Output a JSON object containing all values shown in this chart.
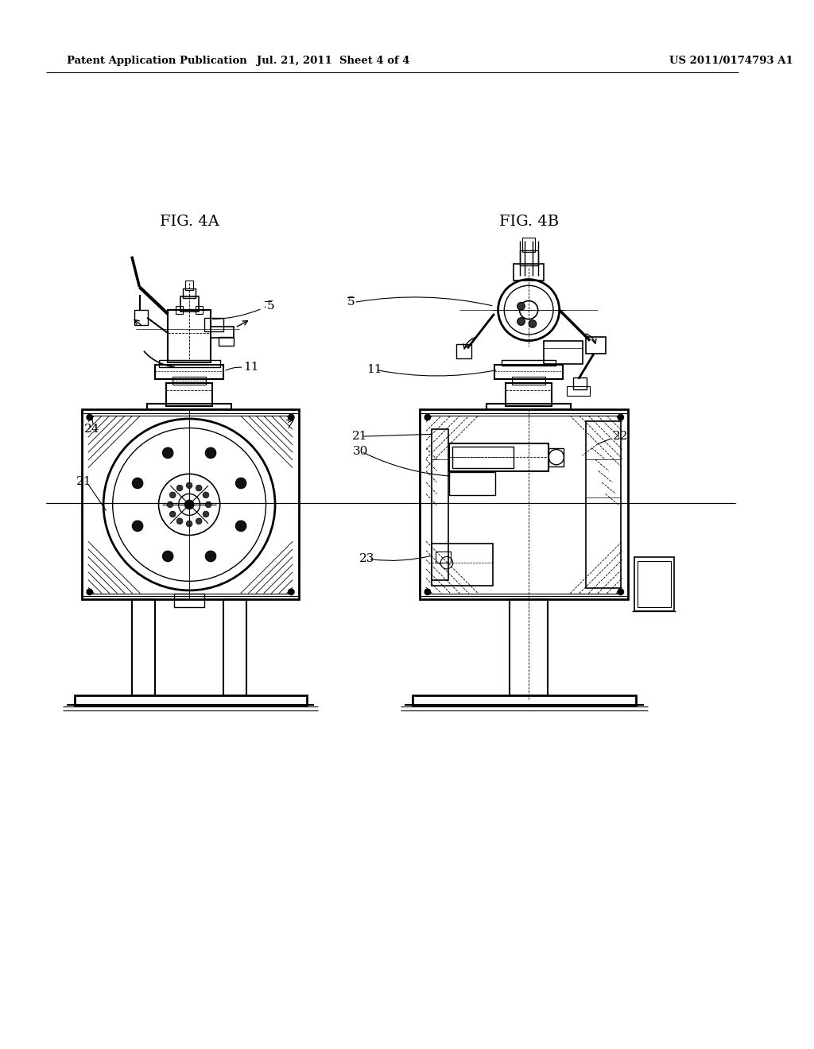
{
  "bg_color": "#ffffff",
  "line_color": "#000000",
  "header_left": "Patent Application Publication",
  "header_mid": "Jul. 21, 2011  Sheet 4 of 4",
  "header_right": "US 2011/0174793 A1",
  "fig4a_title": "FIG. 4A",
  "fig4b_title": "FIG. 4B"
}
